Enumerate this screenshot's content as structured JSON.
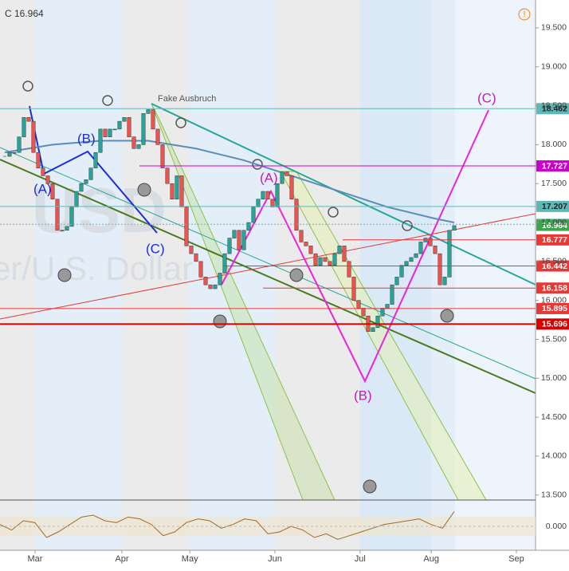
{
  "header": {
    "symbol_line": "C 16.964"
  },
  "watermark": {
    "symbol": "USD",
    "description": "er/U.S. Dollar"
  },
  "annotations": {
    "fake": "Fake Ausbruch",
    "wave1_a": "(A)",
    "wave1_b": "(B)",
    "wave1_c": "(C)",
    "wave2_a": "(A)",
    "wave2_b": "(B)",
    "wave2_c": "(C)"
  },
  "chart_data": {
    "type": "candlestick",
    "values": [
      17.85,
      17.9,
      17.9,
      18.1,
      18.35,
      18.3,
      17.9,
      17.7,
      17.6,
      17.5,
      17.3,
      16.9,
      16.9,
      16.95,
      17.2,
      17.4,
      17.5,
      17.55,
      17.7,
      17.9,
      18.2,
      18.1,
      18.2,
      18.2,
      18.3,
      18.35,
      18.1,
      17.95,
      18.0,
      18.4,
      18.45,
      18.2,
      18.0,
      17.7,
      17.5,
      17.3,
      17.6,
      17.2,
      16.7,
      16.6,
      16.5,
      16.3,
      16.2,
      16.15,
      16.2,
      16.35,
      16.6,
      16.8,
      16.9,
      16.65,
      16.9,
      17.0,
      17.2,
      17.3,
      17.4,
      17.3,
      17.2,
      17.5,
      17.65,
      17.6,
      17.3,
      16.9,
      16.75,
      16.7,
      16.6,
      16.45,
      16.55,
      16.5,
      16.45,
      16.6,
      16.7,
      16.5,
      16.3,
      16.0,
      15.9,
      15.8,
      15.6,
      15.65,
      15.8,
      15.9,
      15.95,
      16.2,
      16.3,
      16.45,
      16.5,
      16.55,
      16.6,
      16.75,
      16.8,
      16.7,
      16.6,
      16.2,
      16.3,
      16.9,
      16.96
    ],
    "up_color": "#26a69a",
    "down_color": "#ef5350",
    "ma": {
      "x": [
        0,
        10,
        20,
        30,
        40,
        50,
        60,
        70,
        80,
        90,
        94
      ],
      "values": [
        17.9,
        18.0,
        18.05,
        18.05,
        17.95,
        17.8,
        17.6,
        17.4,
        17.2,
        17.05,
        17.0
      ],
      "color": "#5b8db8"
    },
    "xlim": [
      -1,
      111
    ],
    "xticks": [
      {
        "value": 6.33,
        "label": "Mar"
      },
      {
        "value": 24.5,
        "label": "Apr"
      },
      {
        "value": 38.7,
        "label": "May"
      },
      {
        "value": 56.5,
        "label": "Jun"
      },
      {
        "value": 74.3,
        "label": "Jul"
      },
      {
        "value": 89.2,
        "label": "Aug"
      },
      {
        "value": 107,
        "label": "Sep"
      }
    ],
    "ylim": [
      13.436,
      19.858
    ],
    "yticks": [
      {
        "value": 19.5,
        "label": "19.500"
      },
      {
        "value": 19,
        "label": "19.000"
      },
      {
        "value": 18.5,
        "label": "18.500"
      },
      {
        "value": 18,
        "label": "18.000"
      },
      {
        "value": 17.5,
        "label": "17.500"
      },
      {
        "value": 17,
        "label": "17.000"
      },
      {
        "value": 16.5,
        "label": "16.500"
      },
      {
        "value": 16,
        "label": "16.000"
      },
      {
        "value": 15.5,
        "label": "15.500"
      },
      {
        "value": 15,
        "label": "15.000"
      },
      {
        "value": 14.5,
        "label": "14.500"
      },
      {
        "value": 14,
        "label": "14.000"
      },
      {
        "value": 13.5,
        "label": "13.500"
      }
    ],
    "levels": [
      {
        "value": 18.462,
        "color": "#5fb8b8"
      },
      {
        "value": 17.727,
        "color": "#cc00cc"
      },
      {
        "value": 17.207,
        "color": "#5fb8b8"
      },
      {
        "value": 16.977,
        "color": "#5fb8b8"
      },
      {
        "value": 16.964,
        "color": "#3fa34d"
      },
      {
        "value": 16.777,
        "color": "#e53935"
      },
      {
        "value": 16.442,
        "color": "#e53935"
      },
      {
        "value": 16.158,
        "color": "#e53935"
      },
      {
        "value": 15.895,
        "color": "#e53935"
      },
      {
        "value": 15.696,
        "color": "#d50000"
      }
    ],
    "indicator": {
      "values": [
        0.1,
        -0.2,
        0.3,
        0.2,
        -0.6,
        -0.3,
        0.1,
        0.5,
        0.6,
        0.3,
        0.2,
        0.5,
        0.4,
        0.1,
        -0.5,
        -0.3,
        0.2,
        0.4,
        0.3,
        -0.1,
        0.1,
        0.4,
        0.3,
        -0.4,
        -0.3,
        0.0,
        -0.2,
        -0.6,
        -0.4,
        -0.7,
        -0.5,
        -0.3,
        -0.1,
        0.1,
        0.2,
        0.3,
        0.4,
        0.1,
        -0.1,
        0.8
      ],
      "ylim": [
        -1.2,
        1.2
      ],
      "yticks": [
        {
          "value": 0,
          "label": "0.000"
        }
      ],
      "color": "#a06a2a"
    }
  }
}
